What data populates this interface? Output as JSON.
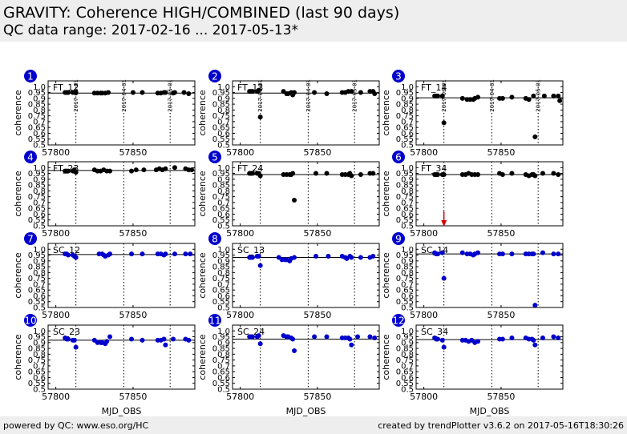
{
  "header": {
    "title": "GRAVITY: Coherence HIGH/COMBINED (last 90 days)",
    "subtitle": "QC data range: 2017-02-16 ... 2017-05-13*"
  },
  "footer": {
    "left": "powered by QC: www.eso.org/HC",
    "right": "created by trendPlotter v3.6.2 on 2017-05-16T18:30:26"
  },
  "colors": {
    "ft": "#000000",
    "sc": "#0000cc",
    "badge": "#0000cc",
    "arrow": "#dd0000"
  },
  "chart_data": {
    "type": "scatter",
    "xlabel": "MJD_OBS",
    "ylabel": "coherence",
    "xlim": [
      57795,
      57890
    ],
    "ylim": [
      0.5,
      1.05
    ],
    "xticks": [
      57800,
      57850
    ],
    "yticks": [
      0.5,
      0.55,
      0.6,
      0.65,
      0.7,
      0.75,
      0.8,
      0.85,
      0.9,
      0.95,
      1.0
    ],
    "date_markers": [
      {
        "x": 57813,
        "label": "2017-03-01"
      },
      {
        "x": 57844,
        "label": "2017-04-01"
      },
      {
        "x": 57874,
        "label": "2017-05-01"
      }
    ],
    "panels": [
      {
        "id": "1",
        "label": "FT_12",
        "color": "ft",
        "ref": 0.945,
        "points": [
          [
            57806,
            0.95
          ],
          [
            57807,
            0.95
          ],
          [
            57808,
            0.95
          ],
          [
            57811,
            0.95
          ],
          [
            57813,
            0.95
          ],
          [
            57825,
            0.945
          ],
          [
            57827,
            0.945
          ],
          [
            57829,
            0.945
          ],
          [
            57830,
            0.945
          ],
          [
            57832,
            0.945
          ],
          [
            57834,
            0.95
          ],
          [
            57850,
            0.95
          ],
          [
            57856,
            0.95
          ],
          [
            57866,
            0.945
          ],
          [
            57868,
            0.945
          ],
          [
            57870,
            0.95
          ],
          [
            57871,
            0.95
          ],
          [
            57876,
            0.945
          ],
          [
            57877,
            0.95
          ],
          [
            57883,
            0.95
          ],
          [
            57886,
            0.94
          ]
        ]
      },
      {
        "id": "2",
        "label": "FT_13",
        "color": "ft",
        "ref": 0.945,
        "points": [
          [
            57806,
            0.96
          ],
          [
            57807,
            0.96
          ],
          [
            57808,
            0.96
          ],
          [
            57811,
            0.96
          ],
          [
            57812,
            0.97
          ],
          [
            57813,
            0.74
          ],
          [
            57828,
            0.96
          ],
          [
            57830,
            0.94
          ],
          [
            57831,
            0.94
          ],
          [
            57833,
            0.95
          ],
          [
            57834,
            0.93
          ],
          [
            57835,
            0.95
          ],
          [
            57848,
            0.95
          ],
          [
            57856,
            0.94
          ],
          [
            57866,
            0.95
          ],
          [
            57868,
            0.95
          ],
          [
            57870,
            0.96
          ],
          [
            57872,
            0.96
          ],
          [
            57878,
            0.95
          ],
          [
            57884,
            0.96
          ],
          [
            57886,
            0.96
          ],
          [
            57887,
            0.94
          ]
        ]
      },
      {
        "id": "3",
        "label": "FT_14",
        "color": "ft",
        "ref": 0.905,
        "points": [
          [
            57807,
            0.92
          ],
          [
            57808,
            0.92
          ],
          [
            57809,
            0.92
          ],
          [
            57812,
            0.92
          ],
          [
            57813,
            0.69
          ],
          [
            57825,
            0.9
          ],
          [
            57828,
            0.89
          ],
          [
            57830,
            0.89
          ],
          [
            57832,
            0.89
          ],
          [
            57833,
            0.9
          ],
          [
            57835,
            0.91
          ],
          [
            57849,
            0.9
          ],
          [
            57851,
            0.9
          ],
          [
            57857,
            0.91
          ],
          [
            57866,
            0.9
          ],
          [
            57868,
            0.89
          ],
          [
            57871,
            0.92
          ],
          [
            57872,
            0.57
          ],
          [
            57878,
            0.92
          ],
          [
            57884,
            0.92
          ],
          [
            57887,
            0.92
          ],
          [
            57888,
            0.88
          ]
        ]
      },
      {
        "id": "4",
        "label": "FT_23",
        "color": "ft",
        "ref": 0.975,
        "points": [
          [
            57806,
            0.97
          ],
          [
            57807,
            0.97
          ],
          [
            57808,
            0.97
          ],
          [
            57811,
            0.97
          ],
          [
            57812,
            0.98
          ],
          [
            57813,
            0.96
          ],
          [
            57825,
            0.98
          ],
          [
            57827,
            0.97
          ],
          [
            57829,
            0.97
          ],
          [
            57831,
            0.98
          ],
          [
            57833,
            0.97
          ],
          [
            57835,
            0.97
          ],
          [
            57849,
            0.97
          ],
          [
            57852,
            0.98
          ],
          [
            57857,
            0.98
          ],
          [
            57865,
            0.98
          ],
          [
            57867,
            0.99
          ],
          [
            57869,
            0.98
          ],
          [
            57871,
            0.99
          ],
          [
            57877,
            1.0
          ],
          [
            57884,
            0.99
          ],
          [
            57886,
            0.98
          ],
          [
            57888,
            0.98
          ]
        ]
      },
      {
        "id": "5",
        "label": "FT_24",
        "color": "ft",
        "ref": 0.94,
        "points": [
          [
            57806,
            0.95
          ],
          [
            57807,
            0.95
          ],
          [
            57808,
            0.95
          ],
          [
            57811,
            0.95
          ],
          [
            57812,
            0.95
          ],
          [
            57813,
            0.93
          ],
          [
            57828,
            0.94
          ],
          [
            57830,
            0.94
          ],
          [
            57832,
            0.94
          ],
          [
            57833,
            0.94
          ],
          [
            57834,
            0.95
          ],
          [
            57835,
            0.72
          ],
          [
            57849,
            0.95
          ],
          [
            57856,
            0.95
          ],
          [
            57866,
            0.94
          ],
          [
            57868,
            0.94
          ],
          [
            57870,
            0.94
          ],
          [
            57871,
            0.95
          ],
          [
            57872,
            0.93
          ],
          [
            57878,
            0.94
          ],
          [
            57884,
            0.95
          ],
          [
            57886,
            0.95
          ]
        ]
      },
      {
        "id": "6",
        "label": "FT_34",
        "color": "ft",
        "ref": 0.94,
        "points": [
          [
            57807,
            0.94
          ],
          [
            57808,
            0.94
          ],
          [
            57809,
            0.94
          ],
          [
            57812,
            0.94
          ],
          [
            57813,
            0.94
          ],
          [
            57825,
            0.94
          ],
          [
            57827,
            0.94
          ],
          [
            57829,
            0.95
          ],
          [
            57831,
            0.94
          ],
          [
            57833,
            0.94
          ],
          [
            57835,
            0.94
          ],
          [
            57849,
            0.95
          ],
          [
            57851,
            0.94
          ],
          [
            57857,
            0.95
          ],
          [
            57866,
            0.94
          ],
          [
            57868,
            0.93
          ],
          [
            57870,
            0.94
          ],
          [
            57871,
            0.94
          ],
          [
            57872,
            0.93
          ],
          [
            57877,
            0.95
          ],
          [
            57884,
            0.95
          ],
          [
            57887,
            0.94
          ]
        ],
        "arrow_x": 57813
      },
      {
        "id": "7",
        "label": "SC_12",
        "color": "sc",
        "ref": 0.955,
        "points": [
          [
            57806,
            0.96
          ],
          [
            57807,
            0.96
          ],
          [
            57808,
            0.95
          ],
          [
            57811,
            0.95
          ],
          [
            57812,
            0.94
          ],
          [
            57813,
            0.93
          ],
          [
            57828,
            0.96
          ],
          [
            57830,
            0.96
          ],
          [
            57831,
            0.95
          ],
          [
            57832,
            0.94
          ],
          [
            57834,
            0.95
          ],
          [
            57835,
            0.96
          ],
          [
            57849,
            0.96
          ],
          [
            57856,
            0.96
          ],
          [
            57866,
            0.96
          ],
          [
            57868,
            0.96
          ],
          [
            57870,
            0.95
          ],
          [
            57871,
            0.96
          ],
          [
            57877,
            0.96
          ],
          [
            57884,
            0.96
          ],
          [
            57887,
            0.96
          ]
        ]
      },
      {
        "id": "8",
        "label": "SC_13",
        "color": "sc",
        "ref": 0.93,
        "points": [
          [
            57806,
            0.93
          ],
          [
            57807,
            0.93
          ],
          [
            57808,
            0.93
          ],
          [
            57811,
            0.94
          ],
          [
            57812,
            0.94
          ],
          [
            57813,
            0.86
          ],
          [
            57825,
            0.93
          ],
          [
            57827,
            0.91
          ],
          [
            57829,
            0.91
          ],
          [
            57830,
            0.91
          ],
          [
            57832,
            0.9
          ],
          [
            57833,
            0.92
          ],
          [
            57835,
            0.93
          ],
          [
            57849,
            0.94
          ],
          [
            57857,
            0.94
          ],
          [
            57866,
            0.94
          ],
          [
            57868,
            0.93
          ],
          [
            57869,
            0.92
          ],
          [
            57871,
            0.94
          ],
          [
            57872,
            0.93
          ],
          [
            57878,
            0.93
          ],
          [
            57884,
            0.93
          ],
          [
            57886,
            0.94
          ]
        ]
      },
      {
        "id": "9",
        "label": "SC_14",
        "color": "sc",
        "ref": 0.96,
        "points": [
          [
            57807,
            0.97
          ],
          [
            57808,
            0.96
          ],
          [
            57809,
            0.96
          ],
          [
            57812,
            0.97
          ],
          [
            57813,
            0.75
          ],
          [
            57825,
            0.97
          ],
          [
            57828,
            0.96
          ],
          [
            57830,
            0.96
          ],
          [
            57832,
            0.95
          ],
          [
            57833,
            0.96
          ],
          [
            57835,
            0.97
          ],
          [
            57849,
            0.96
          ],
          [
            57851,
            0.96
          ],
          [
            57857,
            0.96
          ],
          [
            57866,
            0.96
          ],
          [
            57868,
            0.96
          ],
          [
            57870,
            0.96
          ],
          [
            57871,
            0.96
          ],
          [
            57872,
            0.52
          ],
          [
            57877,
            0.97
          ],
          [
            57884,
            0.96
          ],
          [
            57887,
            0.96
          ]
        ]
      },
      {
        "id": "10",
        "label": "SC_23",
        "color": "sc",
        "ref": 0.92,
        "points": [
          [
            57806,
            0.94
          ],
          [
            57807,
            0.93
          ],
          [
            57808,
            0.93
          ],
          [
            57811,
            0.92
          ],
          [
            57812,
            0.92
          ],
          [
            57813,
            0.86
          ],
          [
            57825,
            0.92
          ],
          [
            57827,
            0.9
          ],
          [
            57829,
            0.9
          ],
          [
            57830,
            0.9
          ],
          [
            57832,
            0.89
          ],
          [
            57833,
            0.91
          ],
          [
            57835,
            0.95
          ],
          [
            57849,
            0.93
          ],
          [
            57856,
            0.92
          ],
          [
            57866,
            0.92
          ],
          [
            57868,
            0.92
          ],
          [
            57870,
            0.93
          ],
          [
            57871,
            0.88
          ],
          [
            57876,
            0.93
          ],
          [
            57884,
            0.93
          ],
          [
            57886,
            0.92
          ]
        ]
      },
      {
        "id": "11",
        "label": "SC_24",
        "color": "sc",
        "ref": 0.93,
        "points": [
          [
            57806,
            0.95
          ],
          [
            57807,
            0.95
          ],
          [
            57808,
            0.95
          ],
          [
            57811,
            0.95
          ],
          [
            57812,
            0.96
          ],
          [
            57813,
            0.89
          ],
          [
            57828,
            0.96
          ],
          [
            57830,
            0.95
          ],
          [
            57831,
            0.95
          ],
          [
            57833,
            0.94
          ],
          [
            57834,
            0.93
          ],
          [
            57835,
            0.83
          ],
          [
            57848,
            0.95
          ],
          [
            57856,
            0.95
          ],
          [
            57866,
            0.94
          ],
          [
            57868,
            0.94
          ],
          [
            57870,
            0.94
          ],
          [
            57871,
            0.93
          ],
          [
            57872,
            0.88
          ],
          [
            57876,
            0.95
          ],
          [
            57884,
            0.95
          ],
          [
            57887,
            0.94
          ]
        ]
      },
      {
        "id": "12",
        "label": "SC_34",
        "color": "sc",
        "ref": 0.925,
        "points": [
          [
            57807,
            0.94
          ],
          [
            57808,
            0.93
          ],
          [
            57809,
            0.93
          ],
          [
            57812,
            0.92
          ],
          [
            57813,
            0.86
          ],
          [
            57825,
            0.92
          ],
          [
            57827,
            0.92
          ],
          [
            57829,
            0.91
          ],
          [
            57831,
            0.92
          ],
          [
            57833,
            0.9
          ],
          [
            57835,
            0.91
          ],
          [
            57849,
            0.93
          ],
          [
            57851,
            0.93
          ],
          [
            57857,
            0.94
          ],
          [
            57866,
            0.94
          ],
          [
            57868,
            0.93
          ],
          [
            57870,
            0.93
          ],
          [
            57871,
            0.92
          ],
          [
            57872,
            0.88
          ],
          [
            57877,
            0.94
          ],
          [
            57884,
            0.95
          ],
          [
            57887,
            0.94
          ]
        ]
      }
    ]
  }
}
